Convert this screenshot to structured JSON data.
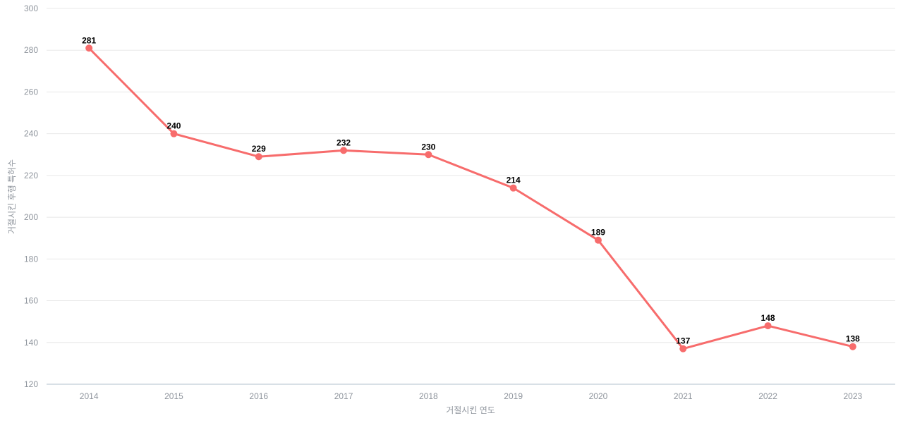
{
  "page": {
    "background": "#ffffff"
  },
  "chart_data": {
    "type": "line",
    "title": "",
    "xlabel": "거절시킨 연도",
    "ylabel": "거절시킨 후행 특허수",
    "categories": [
      "2014",
      "2015",
      "2016",
      "2017",
      "2018",
      "2019",
      "2020",
      "2021",
      "2022",
      "2023"
    ],
    "values": [
      281,
      240,
      229,
      232,
      230,
      214,
      189,
      137,
      148,
      138
    ],
    "data_labels": [
      "281",
      "240",
      "229",
      "232",
      "230",
      "214",
      "189",
      "137",
      "148",
      "138"
    ],
    "ylim": [
      120,
      300
    ],
    "yticks": [
      120,
      140,
      160,
      180,
      200,
      220,
      240,
      260,
      280,
      300
    ],
    "grid": true,
    "legend": "none",
    "marker": "circle",
    "smooth": false,
    "colors": {
      "line": "#f76c6c",
      "marker": "#f76c6c",
      "data_label": "#000000",
      "grid_line": "#e8e8e8",
      "axis_line": "#ccd5dd",
      "tick_label": "#8f959d",
      "axis_title": "#8f959d"
    }
  }
}
